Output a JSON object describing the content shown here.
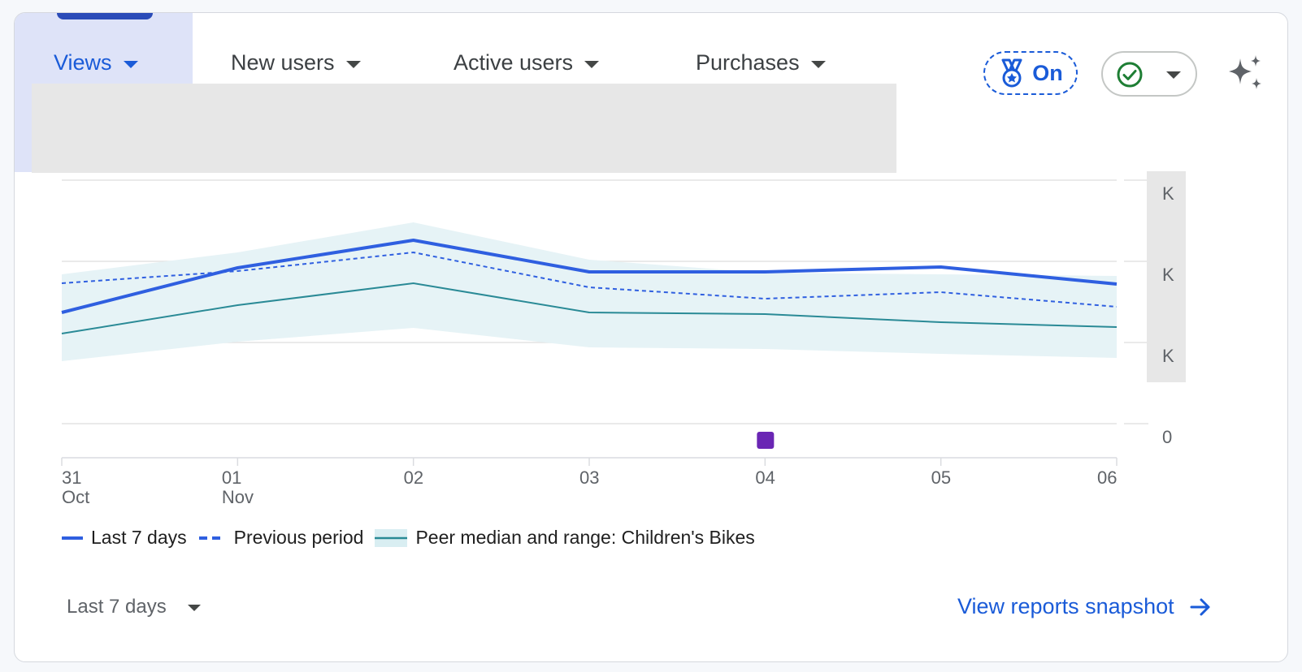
{
  "tabs": [
    {
      "label": "Views",
      "selected": true
    },
    {
      "label": "New users",
      "selected": false
    },
    {
      "label": "Active users",
      "selected": false
    },
    {
      "label": "Purchases",
      "selected": false
    }
  ],
  "header": {
    "on_label": "On",
    "on_icon": "medal-icon",
    "status_icon": "check-circle-icon",
    "ai_icon": "sparkle-icon"
  },
  "colors": {
    "accent": "#1a5bd8",
    "last7": "#2f5fe0",
    "peer_median": "#2a8a96",
    "peer_range": "#e6f3f6",
    "annotation": "#6a26b4"
  },
  "chart_data": {
    "type": "line",
    "x": [
      "31",
      "01",
      "02",
      "03",
      "04",
      "05",
      "06"
    ],
    "x_sub": [
      "Oct",
      "Nov",
      "",
      "",
      "",
      "",
      ""
    ],
    "y_tick_labels": [
      "K",
      "K",
      "K",
      "0"
    ],
    "y_relative_range": [
      0,
      3
    ],
    "grid": true,
    "series": [
      {
        "name": "Last 7 days",
        "style": "solid",
        "values": [
          1.37,
          1.92,
          2.26,
          1.87,
          1.87,
          1.93,
          1.72
        ]
      },
      {
        "name": "Previous period",
        "style": "dashed",
        "values": [
          1.73,
          1.88,
          2.11,
          1.68,
          1.54,
          1.62,
          1.44
        ]
      },
      {
        "name": "Peer median and range: Children's Bikes",
        "style": "median",
        "values": [
          1.11,
          1.46,
          1.73,
          1.37,
          1.35,
          1.25,
          1.19
        ],
        "range_low": [
          0.77,
          1.01,
          1.18,
          0.94,
          0.92,
          0.86,
          0.81
        ],
        "range_high": [
          1.84,
          2.11,
          2.48,
          2.02,
          1.86,
          1.84,
          1.82
        ]
      }
    ],
    "annotation_marker": {
      "x": "04",
      "color": "#6a26b4"
    }
  },
  "legend": {
    "last7": "Last 7 days",
    "previous": "Previous period",
    "peer": "Peer median and range: Children's Bikes"
  },
  "footer": {
    "range_label": "Last 7 days",
    "snapshot_label": "View reports snapshot",
    "snapshot_icon": "arrow-right-icon"
  }
}
